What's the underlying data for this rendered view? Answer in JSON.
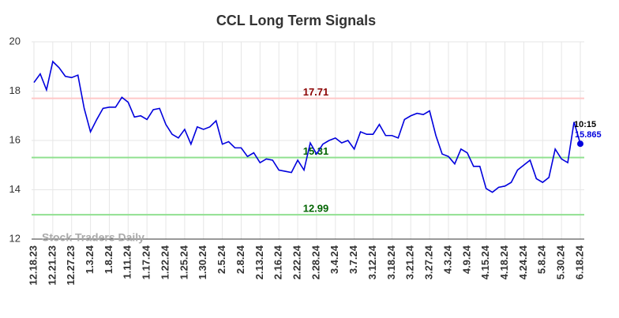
{
  "chart_data": {
    "type": "line",
    "title": "CCL Long Term Signals",
    "categories": [
      "12.18.23",
      null,
      null,
      "12.21.23",
      null,
      null,
      "12.27.23",
      null,
      null,
      "1.3.24",
      null,
      null,
      "1.8.24",
      null,
      null,
      "1.11.24",
      null,
      null,
      "1.17.24",
      null,
      null,
      "1.22.24",
      null,
      null,
      "1.25.24",
      null,
      null,
      "1.30.24",
      null,
      null,
      "2.5.24",
      null,
      null,
      "2.8.24",
      null,
      null,
      "2.13.24",
      null,
      null,
      "2.16.24",
      null,
      null,
      "2.22.24",
      null,
      null,
      "2.28.24",
      null,
      null,
      "3.4.24",
      null,
      null,
      "3.7.24",
      null,
      null,
      "3.12.24",
      null,
      null,
      "3.18.24",
      null,
      null,
      "3.21.24",
      null,
      null,
      "3.27.24",
      null,
      null,
      "4.3.24",
      null,
      null,
      "4.9.24",
      null,
      null,
      "4.15.24",
      null,
      null,
      "4.18.24",
      null,
      null,
      "4.24.24",
      null,
      null,
      "5.8.24",
      null,
      null,
      "5.30.24",
      null,
      null,
      "6.18.24"
    ],
    "values": [
      18.35,
      18.7,
      18.05,
      19.2,
      18.95,
      18.6,
      18.55,
      18.65,
      17.3,
      16.35,
      16.85,
      17.3,
      17.35,
      17.35,
      17.75,
      17.55,
      16.95,
      17.0,
      16.85,
      17.25,
      17.3,
      16.65,
      16.25,
      16.1,
      16.45,
      15.85,
      16.55,
      16.45,
      16.55,
      16.8,
      15.85,
      15.95,
      15.7,
      15.7,
      15.35,
      15.5,
      15.1,
      15.25,
      15.2,
      14.8,
      14.75,
      14.7,
      15.2,
      14.8,
      15.9,
      15.45,
      15.85,
      16.0,
      16.1,
      15.9,
      16.0,
      15.65,
      16.35,
      16.25,
      16.25,
      16.65,
      16.2,
      16.2,
      16.1,
      16.85,
      17.0,
      17.1,
      17.05,
      17.2,
      16.2,
      15.45,
      15.35,
      15.05,
      15.65,
      15.5,
      14.95,
      14.95,
      14.05,
      13.9,
      14.1,
      14.15,
      14.3,
      14.8,
      15.0,
      15.2,
      14.45,
      14.3,
      14.5,
      15.65,
      15.25,
      15.1,
      16.75,
      15.865
    ],
    "color": "#0000dd",
    "ylim": [
      12,
      20
    ],
    "yticks": [
      12,
      14,
      16,
      18,
      20
    ],
    "grid": true,
    "reference_lines": [
      {
        "value": 17.71,
        "color": "#ffc8c8",
        "label_color": "#8b0000"
      },
      {
        "value": 15.31,
        "color": "#90e090",
        "label_color": "#006400"
      },
      {
        "value": 12.99,
        "color": "#90e090",
        "label_color": "#006400"
      }
    ],
    "annotation": "10:15",
    "watermark": "Stock Traders Daily"
  }
}
